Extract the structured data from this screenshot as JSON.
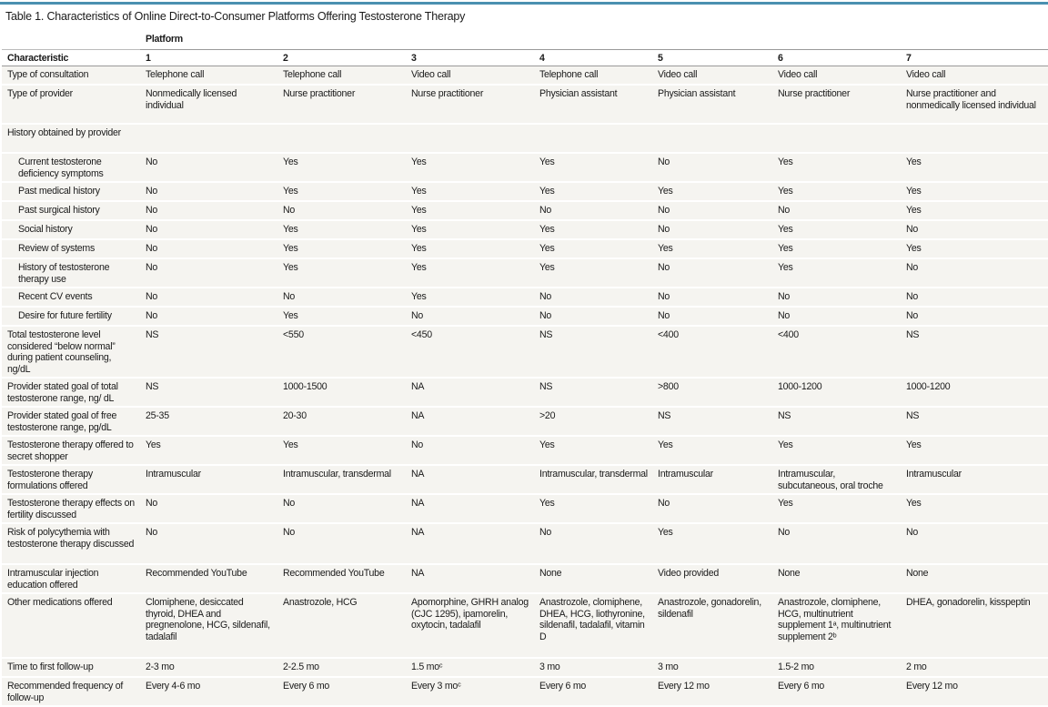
{
  "title": "Table 1. Characteristics of Online Direct-to-Consumer Platforms Offering Testosterone Therapy",
  "header": {
    "group_label": "Platform",
    "characteristic_label": "Characteristic",
    "platforms": [
      "1",
      "2",
      "3",
      "4",
      "5",
      "6",
      "7"
    ]
  },
  "rows": [
    {
      "label": "Type of consultation",
      "indent": false,
      "values": [
        "Telephone call",
        "Telephone call",
        "Video call",
        "Telephone call",
        "Video call",
        "Video call",
        "Video call"
      ]
    },
    {
      "label": "Type of provider",
      "indent": false,
      "values": [
        "Nonmedically licensed individual",
        "Nurse practitioner",
        "Nurse practitioner",
        "Physician assistant",
        "Physician assistant",
        "Nurse practitioner",
        "Nurse practitioner and nonmedically licensed individual"
      ]
    },
    {
      "label": "History obtained by provider",
      "indent": false,
      "values": [
        "",
        "",
        "",
        "",
        "",
        "",
        ""
      ]
    },
    {
      "label": "Current testosterone deficiency symptoms",
      "indent": true,
      "values": [
        "No",
        "Yes",
        "Yes",
        "Yes",
        "No",
        "Yes",
        "Yes"
      ]
    },
    {
      "label": "Past medical history",
      "indent": true,
      "values": [
        "No",
        "Yes",
        "Yes",
        "Yes",
        "Yes",
        "Yes",
        "Yes"
      ]
    },
    {
      "label": "Past surgical history",
      "indent": true,
      "values": [
        "No",
        "No",
        "Yes",
        "No",
        "No",
        "No",
        "Yes"
      ]
    },
    {
      "label": "Social history",
      "indent": true,
      "values": [
        "No",
        "Yes",
        "Yes",
        "Yes",
        "No",
        "Yes",
        "No"
      ]
    },
    {
      "label": "Review of systems",
      "indent": true,
      "values": [
        "No",
        "Yes",
        "Yes",
        "Yes",
        "Yes",
        "Yes",
        "Yes"
      ]
    },
    {
      "label": "History of testosterone therapy use",
      "indent": true,
      "values": [
        "No",
        "Yes",
        "Yes",
        "Yes",
        "No",
        "Yes",
        "No"
      ]
    },
    {
      "label": "Recent CV events",
      "indent": true,
      "values": [
        "No",
        "No",
        "Yes",
        "No",
        "No",
        "No",
        "No"
      ]
    },
    {
      "label": "Desire for future fertility",
      "indent": true,
      "values": [
        "No",
        "Yes",
        "No",
        "No",
        "No",
        "No",
        "No"
      ]
    },
    {
      "label": "Total testosterone level considered “below normal” during patient counseling, ng/dL",
      "indent": false,
      "values": [
        "NS",
        "<550",
        "<450",
        "NS",
        "<400",
        "<400",
        "NS"
      ]
    },
    {
      "label": "Provider stated goal of total testosterone range, ng/ dL",
      "indent": false,
      "values": [
        "NS",
        "1000-1500",
        "NA",
        "NS",
        ">800",
        "1000-1200",
        "1000-1200"
      ]
    },
    {
      "label": "Provider stated goal of free testosterone range, pg/dL",
      "indent": false,
      "values": [
        "25-35",
        "20-30",
        "NA",
        ">20",
        "NS",
        "NS",
        "NS"
      ]
    },
    {
      "label": "Testosterone therapy offered to secret shopper",
      "indent": false,
      "values": [
        "Yes",
        "Yes",
        "No",
        "Yes",
        "Yes",
        "Yes",
        "Yes"
      ]
    },
    {
      "label": "Testosterone therapy formulations offered",
      "indent": false,
      "values": [
        "Intramuscular",
        "Intramuscular, transdermal",
        "NA",
        "Intramuscular, transdermal",
        "Intramuscular",
        "Intramuscular, subcutaneous, oral troche",
        "Intramuscular"
      ]
    },
    {
      "label": "Testosterone therapy effects on fertility discussed",
      "indent": false,
      "values": [
        "No",
        "No",
        "NA",
        "Yes",
        "No",
        "Yes",
        "Yes"
      ]
    },
    {
      "label": "Risk of polycythemia with testosterone therapy discussed",
      "indent": false,
      "values": [
        "No",
        "No",
        "NA",
        "No",
        "Yes",
        "No",
        "No"
      ]
    },
    {
      "label": "Intramuscular injection education offered",
      "indent": false,
      "values": [
        "Recommended YouTube",
        "Recommended YouTube",
        "NA",
        "None",
        "Video provided",
        "None",
        "None"
      ]
    },
    {
      "label": "Other medications offered",
      "indent": false,
      "values": [
        "Clomiphene, desiccated thyroid, DHEA and pregnenolone, HCG, sildenafil, tadalafil",
        "Anastrozole, HCG",
        "Apomorphine, GHRH analog (CJC 1295), ipamorelin, oxytocin, tadalafil",
        "Anastrozole, clomiphene, DHEA, HCG, liothyronine, sildenafil, tadalafil, vitamin D",
        "Anastrozole, gonadorelin, sildenafil",
        "Anastrozole, clomiphene, HCG, multinutrient supplement 1ᵃ, multinutrient supplement 2ᵇ",
        "DHEA, gonadorelin, kisspeptin"
      ]
    },
    {
      "label": "Time to first follow-up",
      "indent": false,
      "values": [
        "2-3 mo",
        "2-2.5 mo",
        "1.5 moᶜ",
        "3 mo",
        "3 mo",
        "1.5-2 mo",
        "2 mo"
      ]
    },
    {
      "label": "Recommended frequency of follow-up",
      "indent": false,
      "values": [
        "Every 4-6 mo",
        "Every 6 mo",
        "Every 3 moᶜ",
        "Every 6 mo",
        "Every 12 mo",
        "Every 6 mo",
        "Every 12 mo"
      ]
    }
  ]
}
